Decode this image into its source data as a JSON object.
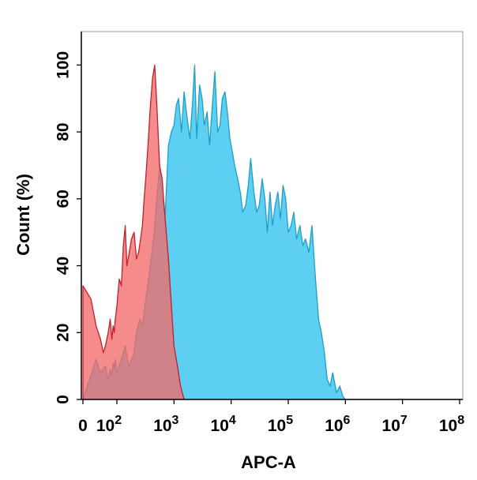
{
  "chart_data": {
    "type": "area",
    "title": "",
    "xlabel": "APC-A",
    "ylabel": "Count  (%)",
    "x_scale": "log",
    "xlim": [
      0,
      100000000
    ],
    "ylim": [
      0,
      110
    ],
    "grid": false,
    "legend": "none",
    "x_ticks": [
      {
        "value": 0,
        "base": "0",
        "exp": ""
      },
      {
        "value": 100,
        "base": "10",
        "exp": "2"
      },
      {
        "value": 1000,
        "base": "10",
        "exp": "3"
      },
      {
        "value": 10000,
        "base": "10",
        "exp": "4"
      },
      {
        "value": 100000,
        "base": "10",
        "exp": "5"
      },
      {
        "value": 1000000,
        "base": "10",
        "exp": "6"
      },
      {
        "value": 10000000,
        "base": "10",
        "exp": "7"
      },
      {
        "value": 100000000,
        "base": "10",
        "exp": "8"
      }
    ],
    "y_ticks": [
      {
        "value": 0,
        "label": "0"
      },
      {
        "value": 20,
        "label": "20"
      },
      {
        "value": 40,
        "label": "40"
      },
      {
        "value": 60,
        "label": "60"
      },
      {
        "value": 80,
        "label": "80"
      },
      {
        "value": 100,
        "label": "100"
      }
    ],
    "series": [
      {
        "fill": "#5ccff2",
        "stroke": "#1f9fc8",
        "x": [
          0,
          5,
          10,
          20,
          30,
          40,
          50,
          60,
          70,
          80,
          90,
          100,
          120,
          140,
          160,
          180,
          200,
          220,
          250,
          280,
          320,
          360,
          400,
          450,
          500,
          560,
          620,
          700,
          800,
          900,
          1000,
          1100,
          1200,
          1350,
          1500,
          1700,
          1900,
          2100,
          2300,
          2500,
          2800,
          3100,
          3400,
          3800,
          4200,
          4700,
          5200,
          5800,
          6400,
          7000,
          7800,
          8600,
          9500,
          10500,
          11500,
          13000,
          14500,
          16000,
          18000,
          20000,
          22000,
          25000,
          28000,
          31000,
          35000,
          39000,
          43000,
          48000,
          53000,
          59000,
          66000,
          73000,
          81000,
          90000,
          100000,
          112000,
          125000,
          140000,
          160000,
          180000,
          200000,
          230000,
          260000,
          300000,
          340000,
          380000,
          430000,
          480000,
          540000,
          600000,
          700000,
          800000,
          900000,
          1000000,
          1200000,
          1400000,
          10000000,
          100000000
        ],
        "y": [
          0,
          12,
          8,
          10,
          6,
          9,
          7,
          11,
          9,
          12,
          10,
          8,
          12,
          16,
          10,
          12,
          14,
          20,
          24,
          22,
          30,
          36,
          42,
          50,
          60,
          70,
          60,
          55,
          76,
          80,
          82,
          88,
          90,
          80,
          92,
          84,
          78,
          88,
          100,
          78,
          94,
          90,
          82,
          86,
          76,
          88,
          98,
          80,
          82,
          90,
          92,
          86,
          78,
          74,
          70,
          66,
          62,
          56,
          58,
          64,
          72,
          62,
          56,
          58,
          66,
          60,
          50,
          62,
          52,
          58,
          62,
          54,
          64,
          60,
          50,
          52,
          56,
          48,
          52,
          46,
          48,
          44,
          52,
          36,
          24,
          20,
          14,
          6,
          4,
          8,
          2,
          4,
          1,
          0,
          0,
          0,
          0,
          0
        ]
      },
      {
        "fill": "#f26a6a",
        "stroke": "#c0202a",
        "x": [
          0,
          2,
          5,
          10,
          15,
          20,
          30,
          40,
          50,
          60,
          70,
          80,
          90,
          100,
          110,
          120,
          130,
          140,
          150,
          165,
          180,
          200,
          220,
          240,
          260,
          280,
          300,
          320,
          350,
          380,
          420,
          460,
          500,
          560,
          620,
          700,
          800,
          900,
          1000,
          1150,
          1300,
          1500,
          2000,
          3000,
          5000,
          10000,
          50000,
          100000,
          1000000,
          10000000,
          100000000
        ],
        "y": [
          34,
          30,
          22,
          18,
          14,
          16,
          20,
          24,
          18,
          22,
          20,
          24,
          26,
          28,
          36,
          34,
          46,
          52,
          40,
          44,
          48,
          50,
          42,
          44,
          48,
          52,
          60,
          66,
          76,
          86,
          96,
          100,
          88,
          70,
          66,
          54,
          42,
          28,
          16,
          10,
          4,
          0,
          0,
          0,
          0,
          0,
          0,
          0,
          0,
          0,
          0
        ]
      }
    ]
  }
}
